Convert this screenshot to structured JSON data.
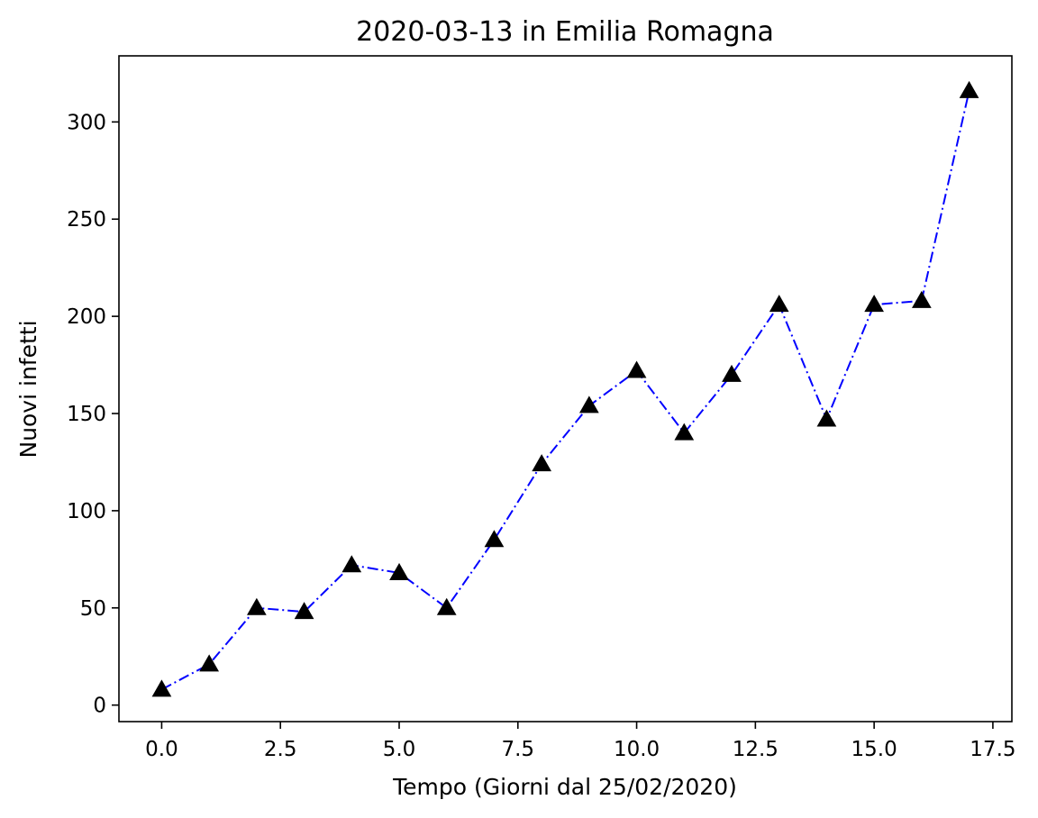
{
  "chart_data": {
    "type": "line",
    "title": "2020-03-13 in Emilia Romagna",
    "xlabel": "Tempo (Giorni dal 25/02/2020)",
    "ylabel": "Nuovi infetti",
    "xlim": [
      -0.9,
      17.9
    ],
    "ylim": [
      -8.5,
      334
    ],
    "xticks": [
      "0.0",
      "2.5",
      "5.0",
      "7.5",
      "10.0",
      "12.5",
      "15.0",
      "17.5"
    ],
    "xtick_values": [
      0,
      2.5,
      5,
      7.5,
      10,
      12.5,
      15,
      17.5
    ],
    "yticks": [
      "0",
      "50",
      "100",
      "150",
      "200",
      "250",
      "300"
    ],
    "ytick_values": [
      0,
      50,
      100,
      150,
      200,
      250,
      300
    ],
    "grid": false,
    "series": [
      {
        "line_color": "#0000ff",
        "line_style": "dashdot",
        "marker": "triangle-up",
        "marker_color": "#000000",
        "x": [
          0,
          1,
          2,
          3,
          4,
          5,
          6,
          7,
          8,
          9,
          10,
          11,
          12,
          13,
          14,
          15,
          16,
          17
        ],
        "y": [
          8,
          21,
          50,
          48,
          72,
          68,
          50,
          85,
          124,
          154,
          172,
          140,
          170,
          206,
          147,
          206,
          208,
          316
        ]
      }
    ]
  }
}
